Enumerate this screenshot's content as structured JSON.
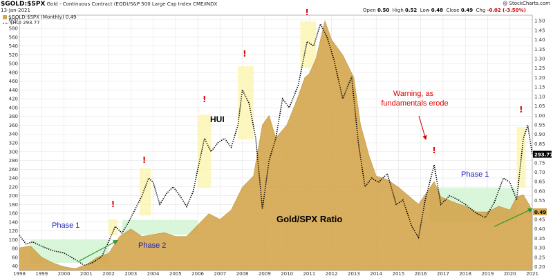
{
  "header": {
    "symbol": "$GOLD:$SPX",
    "description": "Gold - Continuous Contract (EOD)/S&P 500 Large Cap Index  CME/INDX",
    "date": "13-Jan-2021",
    "credit": "@ StockCharts.com",
    "ohlc": {
      "open_label": "Open",
      "open": "0.50",
      "high_label": "High",
      "high": "0.52",
      "low_label": "Low",
      "low": "0.48",
      "close_label": "Close",
      "close": "0.49",
      "chg_label": "Chg",
      "chg": "-0.02 (-3.50%)"
    }
  },
  "legend": [
    {
      "label": "$GOLD:$SPX (Monthly) 0.49",
      "color": "#d4a64e",
      "style": "area"
    },
    {
      "label": "$HUI 293.77",
      "color": "#000000",
      "style": "dotted"
    }
  ],
  "colors": {
    "area": "#d4a64e",
    "area_edge": "#b98a32",
    "phase_box": "#d6f5d6",
    "highlight": "#fbf6b4",
    "arrow": "#2e9a2e",
    "phase_text": "#1a1ab8",
    "warning": "#dd0000",
    "grid": "#e4e4e4"
  },
  "annotations": {
    "hui": "HUI",
    "ratio": "Gold/SPX Ratio",
    "phase1_left": "Phase 1",
    "phase2": "Phase 2",
    "phase1_right": "Phase 1",
    "warning": "Warning, as fundamentals erode",
    "exclaim": "!"
  },
  "chart_data": {
    "type": "area",
    "x_ticks": [
      "1998",
      "1999",
      "2000",
      "2001",
      "2002",
      "2003",
      "2004",
      "2005",
      "2006",
      "2007",
      "2008",
      "2009",
      "2010",
      "2011",
      "2012",
      "2013",
      "2014",
      "2015",
      "2016",
      "2017",
      "2018",
      "2019",
      "2020",
      "2021"
    ],
    "y_left_label": "HUI",
    "y_left_ticks": [
      40,
      60,
      80,
      100,
      120,
      140,
      160,
      180,
      200,
      220,
      240,
      260,
      280,
      300,
      320,
      340,
      360,
      380,
      400,
      420,
      440,
      460,
      480,
      500,
      520,
      540,
      560,
      580,
      600
    ],
    "y_left_range": [
      30,
      610
    ],
    "y_right_label": "Gold/SPX",
    "y_right_ticks": [
      0.2,
      0.25,
      0.3,
      0.35,
      0.4,
      0.45,
      0.5,
      0.55,
      0.6,
      0.65,
      0.7,
      0.75,
      0.8,
      0.85,
      0.9,
      0.95,
      1.0,
      1.05,
      1.1,
      1.15,
      1.2,
      1.25,
      1.3,
      1.35,
      1.4,
      1.45,
      1.5
    ],
    "y_right_range": [
      0.18,
      1.53
    ],
    "right_labels": {
      "hui_last": "293.77",
      "ratio_last": "0.49"
    },
    "series": [
      {
        "name": "$GOLD:$SPX (Monthly)",
        "axis": "right",
        "points": [
          [
            1998.0,
            0.3
          ],
          [
            1998.5,
            0.31
          ],
          [
            1999.0,
            0.25
          ],
          [
            1999.5,
            0.22
          ],
          [
            2000.0,
            0.2
          ],
          [
            2000.5,
            0.19
          ],
          [
            2001.0,
            0.21
          ],
          [
            2001.5,
            0.25
          ],
          [
            2002.0,
            0.27
          ],
          [
            2002.5,
            0.36
          ],
          [
            2003.0,
            0.4
          ],
          [
            2003.5,
            0.36
          ],
          [
            2004.0,
            0.37
          ],
          [
            2004.5,
            0.38
          ],
          [
            2005.0,
            0.36
          ],
          [
            2005.5,
            0.36
          ],
          [
            2006.0,
            0.42
          ],
          [
            2006.5,
            0.48
          ],
          [
            2007.0,
            0.45
          ],
          [
            2007.5,
            0.5
          ],
          [
            2008.0,
            0.62
          ],
          [
            2008.5,
            0.68
          ],
          [
            2008.9,
            0.95
          ],
          [
            2009.2,
            1.0
          ],
          [
            2009.5,
            0.88
          ],
          [
            2010.0,
            0.95
          ],
          [
            2010.5,
            1.1
          ],
          [
            2010.8,
            1.2
          ],
          [
            2011.0,
            1.22
          ],
          [
            2011.3,
            1.3
          ],
          [
            2011.7,
            1.5
          ],
          [
            2012.0,
            1.4
          ],
          [
            2012.5,
            1.32
          ],
          [
            2013.0,
            1.2
          ],
          [
            2013.3,
            0.95
          ],
          [
            2013.7,
            0.78
          ],
          [
            2014.0,
            0.68
          ],
          [
            2014.5,
            0.66
          ],
          [
            2015.0,
            0.62
          ],
          [
            2015.5,
            0.57
          ],
          [
            2015.9,
            0.53
          ],
          [
            2016.3,
            0.6
          ],
          [
            2016.6,
            0.65
          ],
          [
            2016.9,
            0.57
          ],
          [
            2017.5,
            0.54
          ],
          [
            2018.0,
            0.52
          ],
          [
            2018.5,
            0.49
          ],
          [
            2019.0,
            0.49
          ],
          [
            2019.5,
            0.52
          ],
          [
            2020.0,
            0.5
          ],
          [
            2020.3,
            0.57
          ],
          [
            2020.6,
            0.58
          ],
          [
            2020.9,
            0.52
          ],
          [
            2021.0,
            0.49
          ]
        ]
      },
      {
        "name": "$HUI",
        "axis": "left",
        "points": [
          [
            1998.0,
            110
          ],
          [
            1998.3,
            90
          ],
          [
            1998.6,
            95
          ],
          [
            1999.0,
            85
          ],
          [
            1999.5,
            75
          ],
          [
            2000.0,
            70
          ],
          [
            2000.5,
            55
          ],
          [
            2000.9,
            42
          ],
          [
            2001.3,
            48
          ],
          [
            2001.7,
            62
          ],
          [
            2002.0,
            95
          ],
          [
            2002.3,
            130
          ],
          [
            2002.6,
            115
          ],
          [
            2002.9,
            140
          ],
          [
            2003.2,
            170
          ],
          [
            2003.5,
            200
          ],
          [
            2003.8,
            240
          ],
          [
            2004.0,
            230
          ],
          [
            2004.3,
            180
          ],
          [
            2004.6,
            205
          ],
          [
            2004.9,
            220
          ],
          [
            2005.2,
            200
          ],
          [
            2005.5,
            175
          ],
          [
            2005.8,
            210
          ],
          [
            2006.0,
            260
          ],
          [
            2006.3,
            330
          ],
          [
            2006.6,
            300
          ],
          [
            2006.9,
            320
          ],
          [
            2007.2,
            330
          ],
          [
            2007.5,
            310
          ],
          [
            2007.8,
            360
          ],
          [
            2008.0,
            440
          ],
          [
            2008.3,
            410
          ],
          [
            2008.6,
            330
          ],
          [
            2008.9,
            170
          ],
          [
            2009.2,
            280
          ],
          [
            2009.5,
            330
          ],
          [
            2009.8,
            420
          ],
          [
            2010.1,
            400
          ],
          [
            2010.5,
            450
          ],
          [
            2010.9,
            550
          ],
          [
            2011.2,
            540
          ],
          [
            2011.5,
            590
          ],
          [
            2011.8,
            560
          ],
          [
            2012.1,
            510
          ],
          [
            2012.5,
            420
          ],
          [
            2012.9,
            470
          ],
          [
            2013.2,
            320
          ],
          [
            2013.5,
            220
          ],
          [
            2013.8,
            240
          ],
          [
            2014.1,
            230
          ],
          [
            2014.5,
            250
          ],
          [
            2014.9,
            180
          ],
          [
            2015.2,
            190
          ],
          [
            2015.6,
            130
          ],
          [
            2015.9,
            105
          ],
          [
            2016.2,
            190
          ],
          [
            2016.6,
            270
          ],
          [
            2016.9,
            180
          ],
          [
            2017.3,
            200
          ],
          [
            2017.7,
            190
          ],
          [
            2018.0,
            180
          ],
          [
            2018.5,
            160
          ],
          [
            2018.9,
            150
          ],
          [
            2019.3,
            185
          ],
          [
            2019.7,
            240
          ],
          [
            2020.0,
            230
          ],
          [
            2020.3,
            190
          ],
          [
            2020.6,
            330
          ],
          [
            2020.8,
            360
          ],
          [
            2021.0,
            294
          ]
        ]
      }
    ]
  }
}
